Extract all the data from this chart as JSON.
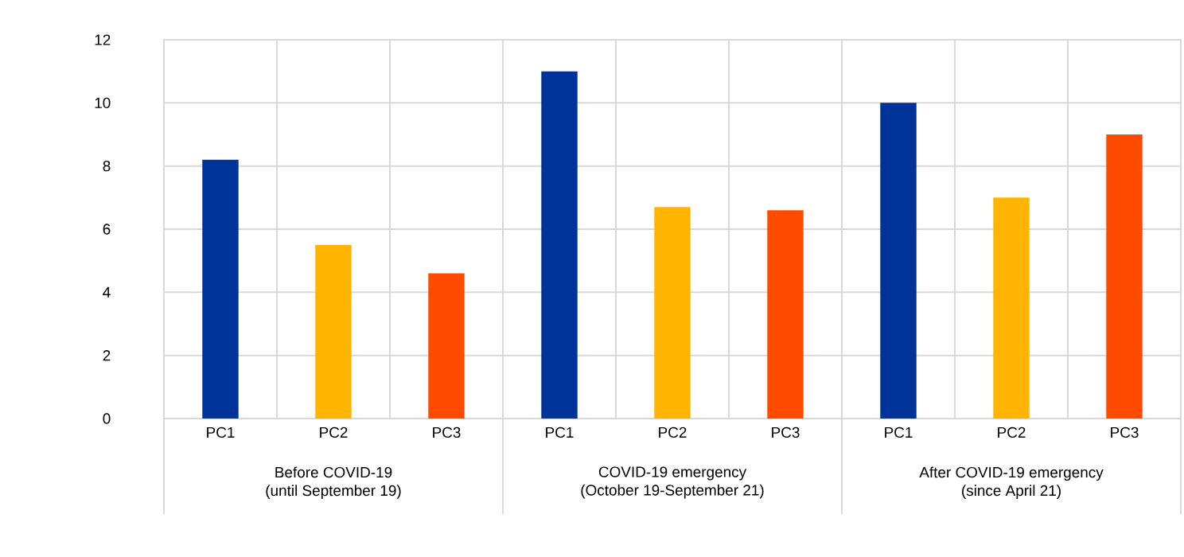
{
  "chart_data": {
    "type": "bar",
    "categories": [
      "PC1",
      "PC2",
      "PC3",
      "PC1",
      "PC2",
      "PC3",
      "PC1",
      "PC2",
      "PC3"
    ],
    "values": [
      8.2,
      5.5,
      4.6,
      11,
      6.7,
      6.6,
      10,
      7,
      9
    ],
    "colors": [
      "#003399",
      "#ffb400",
      "#ff4b00",
      "#003399",
      "#ffb400",
      "#ff4b00",
      "#003399",
      "#ffb400",
      "#ff4b00"
    ],
    "ylim": [
      0,
      12
    ],
    "yticks": [
      0,
      2,
      4,
      6,
      8,
      10,
      12
    ],
    "grid": true,
    "annotations": [
      "Before COVID-19",
      "(until September 19)",
      "COVID-19 emergency",
      "(October 19-September 21)",
      "After COVID-19 emergency",
      "(since April 21)"
    ]
  }
}
